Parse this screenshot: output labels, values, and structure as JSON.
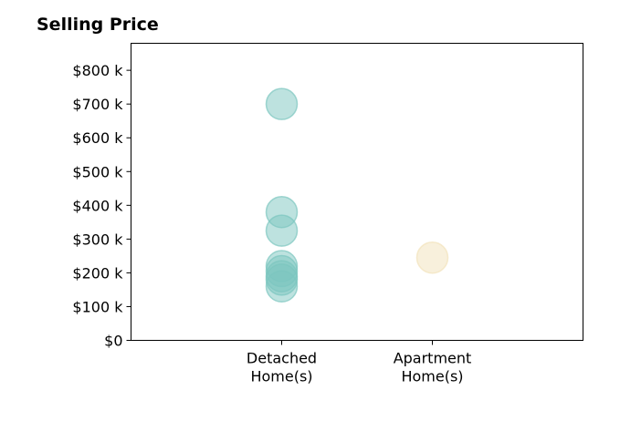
{
  "chart_data": {
    "type": "scatter",
    "title": "Selling Price",
    "xlabel": "",
    "ylabel": "",
    "categories": [
      "Detached\nHome(s)",
      "Apartment\nHome(s)"
    ],
    "xlim": [
      0,
      3
    ],
    "ylim": [
      0,
      880
    ],
    "y_ticks": [
      0,
      100,
      200,
      300,
      400,
      500,
      600,
      700,
      800
    ],
    "y_tick_labels": [
      "$0",
      "$100 k",
      "$200 k",
      "$300 k",
      "$400 k",
      "$500 k",
      "$600 k",
      "$700 k",
      "$800 k"
    ],
    "grid": false,
    "series": [
      {
        "category": "Detached\nHome(s)",
        "color": "#7cc6bf",
        "values": [
          700,
          380,
          325,
          220,
          205,
          190,
          180,
          160
        ]
      },
      {
        "category": "Apartment\nHome(s)",
        "color": "#f2e2ba",
        "values": [
          245
        ]
      }
    ]
  }
}
